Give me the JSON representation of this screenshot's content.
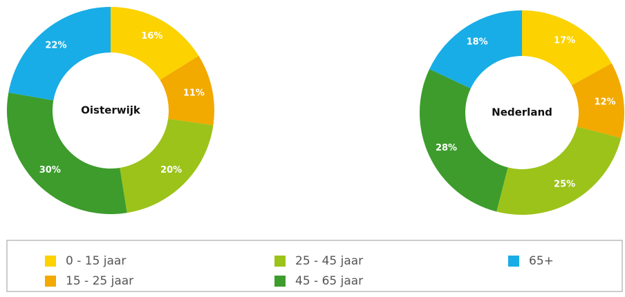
{
  "chart_data": [
    {
      "type": "pie",
      "title": "Oisterwijk",
      "categories": [
        "0 - 15 jaar",
        "15 - 25 jaar",
        "25 - 45 jaar",
        "45 - 65 jaar",
        "65+"
      ],
      "values": [
        16,
        11,
        20,
        30,
        22
      ],
      "value_labels": [
        "16%",
        "11%",
        "20%",
        "30%",
        "22%"
      ],
      "colors": [
        "#fcd200",
        "#f2a900",
        "#9cc31a",
        "#3d9c2c",
        "#18ade6"
      ]
    },
    {
      "type": "pie",
      "title": "Nederland",
      "categories": [
        "0 - 15 jaar",
        "15 - 25 jaar",
        "25 - 45 jaar",
        "45 - 65 jaar",
        "65+"
      ],
      "values": [
        17,
        12,
        25,
        28,
        18
      ],
      "value_labels": [
        "17%",
        "12%",
        "25%",
        "28%",
        "18%"
      ],
      "colors": [
        "#fcd200",
        "#f2a900",
        "#9cc31a",
        "#3d9c2c",
        "#18ade6"
      ]
    }
  ]
}
